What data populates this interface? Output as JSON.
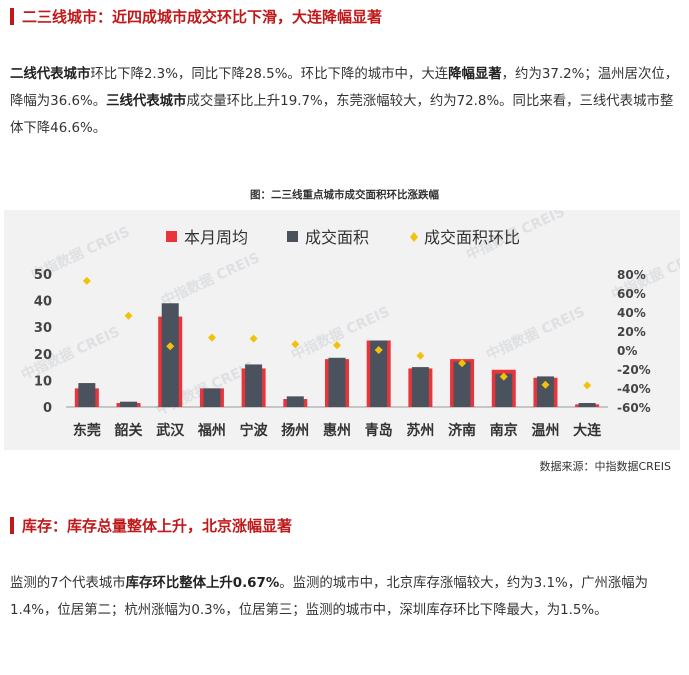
{
  "section1": {
    "heading": "二三线城市：近四成城市成交环比下滑，大连降幅显著",
    "para": {
      "p1": "二线代表城市",
      "p2": "环比下降2.3%，同比下降28.5%。环比下降的城市中，大连",
      "p3": "降幅显著",
      "p4": "，约为37.2%；温州居次位，降幅为36.6%。",
      "p5": "三线代表城市",
      "p6": "成交量环比上升19.7%，东莞涨幅较大，约为72.8%。同比来看，三线代表城市整体下降46.6%。"
    }
  },
  "figure": {
    "caption": "图：二三线重点城市成交面积环比涨跌幅",
    "watermark": "中指数据 CREIS",
    "source": "数据来源：中指数据CREIS"
  },
  "chart_data": {
    "type": "bar",
    "categories": [
      "东莞",
      "韶关",
      "武汉",
      "福州",
      "宁波",
      "扬州",
      "惠州",
      "青岛",
      "苏州",
      "济南",
      "南京",
      "温州",
      "大连"
    ],
    "series": [
      {
        "name": "本月周均",
        "kind": "bar",
        "axis": "left",
        "color": "#e8343a",
        "values": [
          7,
          1.5,
          34,
          7,
          14.5,
          3,
          18,
          25,
          14.5,
          18,
          14,
          11,
          1
        ]
      },
      {
        "name": "成交面积",
        "kind": "bar",
        "axis": "left",
        "color": "#4a535d",
        "values": [
          9,
          2,
          39,
          7,
          16,
          4,
          18.5,
          25,
          15,
          17,
          12.5,
          11.5,
          1.5
        ]
      },
      {
        "name": "成交面积环比",
        "kind": "scatter",
        "axis": "right",
        "color": "#f2c20b",
        "values": [
          72.8,
          36,
          4,
          13,
          12,
          6,
          5,
          0,
          -6,
          -14,
          -28,
          -36.6,
          -37.2
        ]
      }
    ],
    "y_left": {
      "ticks": [
        0,
        10,
        20,
        30,
        40,
        50
      ],
      "range": [
        0,
        50
      ]
    },
    "y_right": {
      "ticks": [
        "80%",
        "60%",
        "40%",
        "20%",
        "0%",
        "-20%",
        "-40%",
        "-60%"
      ],
      "range": [
        -60,
        80
      ]
    },
    "legend": "top",
    "grid": false
  },
  "section2": {
    "heading": "库存：库存总量整体上升，北京涨幅显著",
    "para": {
      "p1": "监测的7个代表城市",
      "p2": "库存环比整体上升0.67%",
      "p3": "。监测的城市中，北京库存涨幅较大，约为3.1%，广州涨幅为1.4%，位居第二；杭州涨幅为0.3%，位居第三；监测的城市中，深圳库存环比下降最大，为1.5%。"
    }
  }
}
